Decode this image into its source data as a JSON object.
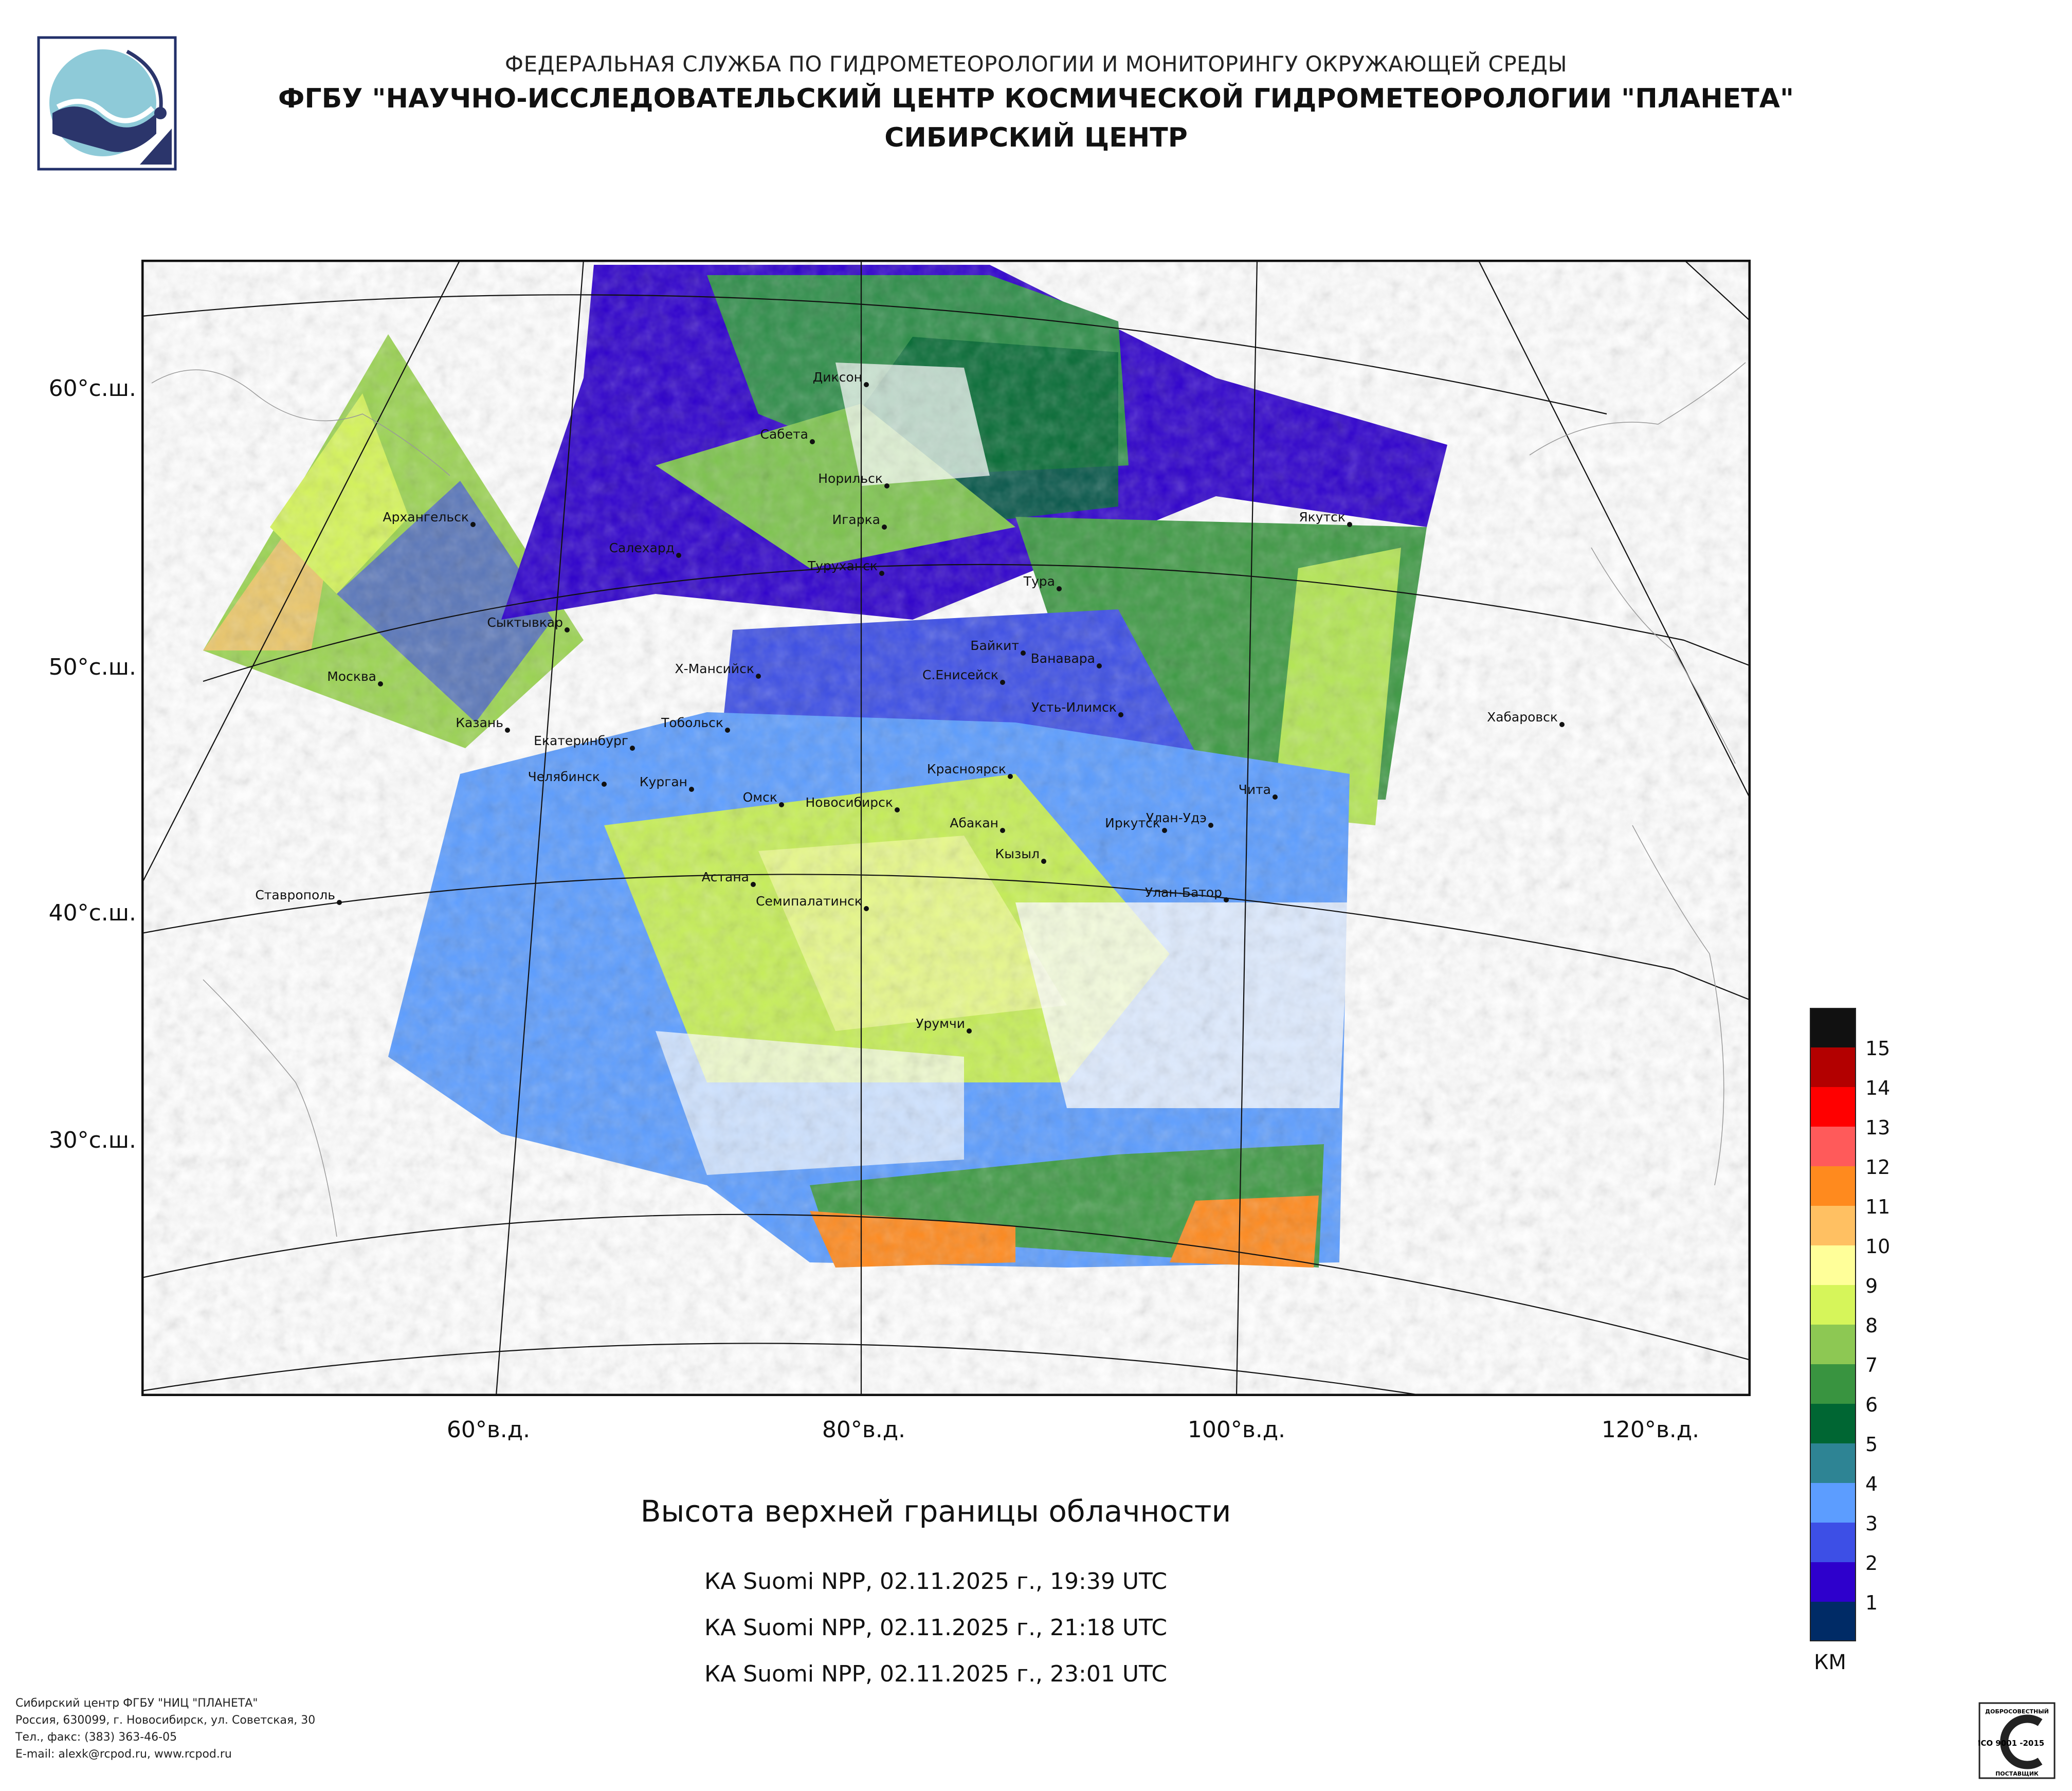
{
  "header": {
    "line1": "ФЕДЕРАЛЬНАЯ СЛУЖБА ПО ГИДРОМЕТЕОРОЛОГИИ И МОНИТОРИНГУ ОКРУЖАЮЩЕЙ СРЕДЫ",
    "line2": "ФГБУ \"НАУЧНО-ИССЛЕДОВАТЕЛЬСКИЙ ЦЕНТР КОСМИЧЕСКОЙ ГИДРОМЕТЕОРОЛОГИИ \"ПЛАНЕТА\"",
    "line3": "СИБИРСКИЙ ЦЕНТР"
  },
  "map": {
    "lat_labels": [
      "60°с.ш.",
      "50°с.ш.",
      "40°с.ш.",
      "30°с.ш."
    ],
    "lon_labels": [
      "60°в.д.",
      "80°в.д.",
      "100°в.д.",
      "120°в.д."
    ],
    "cities": [
      "Диксон",
      "Сабета",
      "Норильск",
      "Игарка",
      "Туруханск",
      "Тура",
      "Якутск",
      "Архангельск",
      "Салехард",
      "Сыктывкар",
      "Байкит",
      "Ванавара",
      "Москва",
      "Х-Мансийск",
      "С.Енисейск",
      "Усть-Илимск",
      "Казань",
      "Екатеринбург",
      "Тобольск",
      "Хабаровск",
      "Красноярск",
      "Челябинск",
      "Курган",
      "Омск",
      "Новосибирск",
      "Абакан",
      "Улан-Удэ",
      "Чита",
      "Иркутск",
      "Кызыл",
      "Астана",
      "Ставрополь",
      "Семипалатинск",
      "Улан-Батор",
      "Урумчи"
    ]
  },
  "legend": {
    "unit": "КМ",
    "labels": [
      "15",
      "14",
      "13",
      "12",
      "11",
      "10",
      "9",
      "8",
      "7",
      "6",
      "5",
      "4",
      "3",
      "2",
      "1"
    ],
    "colors": [
      "#111111",
      "#b30000",
      "#ff0000",
      "#ff5a5a",
      "#ff8a1e",
      "#ffc062",
      "#ffff99",
      "#d6f55a",
      "#8dc853",
      "#399440",
      "#006633",
      "#2e8494",
      "#5c9dff",
      "#3d4fe6",
      "#2e00cc",
      "#002b66"
    ]
  },
  "title": "Высота верхней границы облачности",
  "passes": [
    "КА Suomi NPP, 02.11.2025 г., 19:39 UTC",
    "КА Suomi NPP, 02.11.2025 г., 21:18 UTC",
    "КА Suomi NPP, 02.11.2025 г., 23:01 UTC"
  ],
  "footer": [
    "Сибирский центр ФГБУ \"НИЦ \"ПЛАНЕТА\"",
    "Россия, 630099, г. Новосибирск, ул. Советская, 30",
    "Тел., факс: (383) 363-46-05",
    "E-mail: alexk@rcpod.ru, www.rcpod.ru"
  ],
  "iso_badge": {
    "top": "ДОБРОСОВЕСТНЫЙ",
    "mid": "ИСО 9001 -2015",
    "bottom": "ПОСТАВЩИК"
  }
}
